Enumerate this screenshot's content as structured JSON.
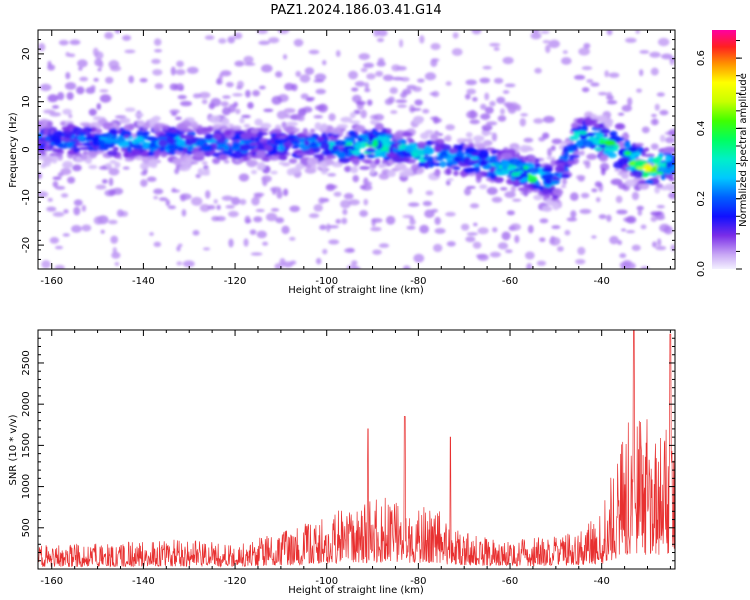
{
  "chart_data": [
    {
      "type": "heatmap",
      "title": "PAZ1.2024.186.03.41.G14",
      "xlabel": "Height of straight line (km)",
      "ylabel": "Frequency (Hz)",
      "xlim": [
        -163,
        -24
      ],
      "ylim": [
        -25,
        25
      ],
      "xticks": [
        "-160",
        "-140",
        "-120",
        "-100",
        "-80",
        "-60",
        "-40"
      ],
      "yticks": [
        "-20",
        "-10",
        "0",
        "10",
        "20"
      ],
      "colorbar": {
        "label": "Normalized spectral amplitude",
        "range": [
          0,
          0.68
        ],
        "ticks": [
          "0.0",
          "0.2",
          "0.4",
          "0.6"
        ],
        "colormap": "gist_ncar"
      },
      "ridge": {
        "description_points_x_km": [
          -162,
          -150,
          -140,
          -130,
          -120,
          -110,
          -100,
          -90,
          -85,
          -80,
          -70,
          -60,
          -55,
          -50,
          -45,
          -40,
          -35,
          -30,
          -25
        ],
        "frequency_hz": [
          2,
          2,
          1.5,
          1.5,
          1,
          1,
          0.5,
          1,
          0.5,
          -1,
          -2,
          -4,
          -5.5,
          -7,
          3,
          2,
          -1,
          -4,
          -3
        ],
        "peak_amplitude": [
          0.25,
          0.25,
          0.3,
          0.3,
          0.25,
          0.25,
          0.3,
          0.5,
          0.3,
          0.35,
          0.3,
          0.35,
          0.45,
          0.3,
          0.4,
          0.5,
          0.4,
          0.62,
          0.3
        ]
      }
    },
    {
      "type": "line",
      "title": "",
      "xlabel": "Height of straight line (km)",
      "ylabel": "SNR (10 * v/v)",
      "xlim": [
        -163,
        -24
      ],
      "ylim": [
        0,
        2900
      ],
      "xticks": [
        "-160",
        "-140",
        "-120",
        "-100",
        "-80",
        "-60",
        "-40"
      ],
      "yticks": [
        "500",
        "1000",
        "1500",
        "2000",
        "2500"
      ],
      "color": "#e83030",
      "series": [
        {
          "x": [
            -163,
            -155,
            -145,
            -135,
            -125,
            -120,
            -115,
            -110,
            -105,
            -100,
            -95,
            -90,
            -85,
            -80,
            -75,
            -72,
            -68,
            -60,
            -55,
            -50,
            -45,
            -40,
            -38,
            -36,
            -34,
            -32,
            -30,
            -28,
            -26,
            -24
          ],
          "y": [
            180,
            180,
            200,
            220,
            200,
            170,
            250,
            280,
            330,
            400,
            460,
            520,
            550,
            480,
            420,
            300,
            250,
            210,
            230,
            250,
            300,
            400,
            700,
            900,
            1100,
            1300,
            1100,
            900,
            1100,
            1000
          ]
        }
      ],
      "notable_peaks": [
        {
          "x": -91,
          "y": 1700
        },
        {
          "x": -83,
          "y": 1850
        },
        {
          "x": -73,
          "y": 1600
        },
        {
          "x": -33,
          "y": 2900
        },
        {
          "x": -25,
          "y": 2850
        }
      ]
    }
  ]
}
